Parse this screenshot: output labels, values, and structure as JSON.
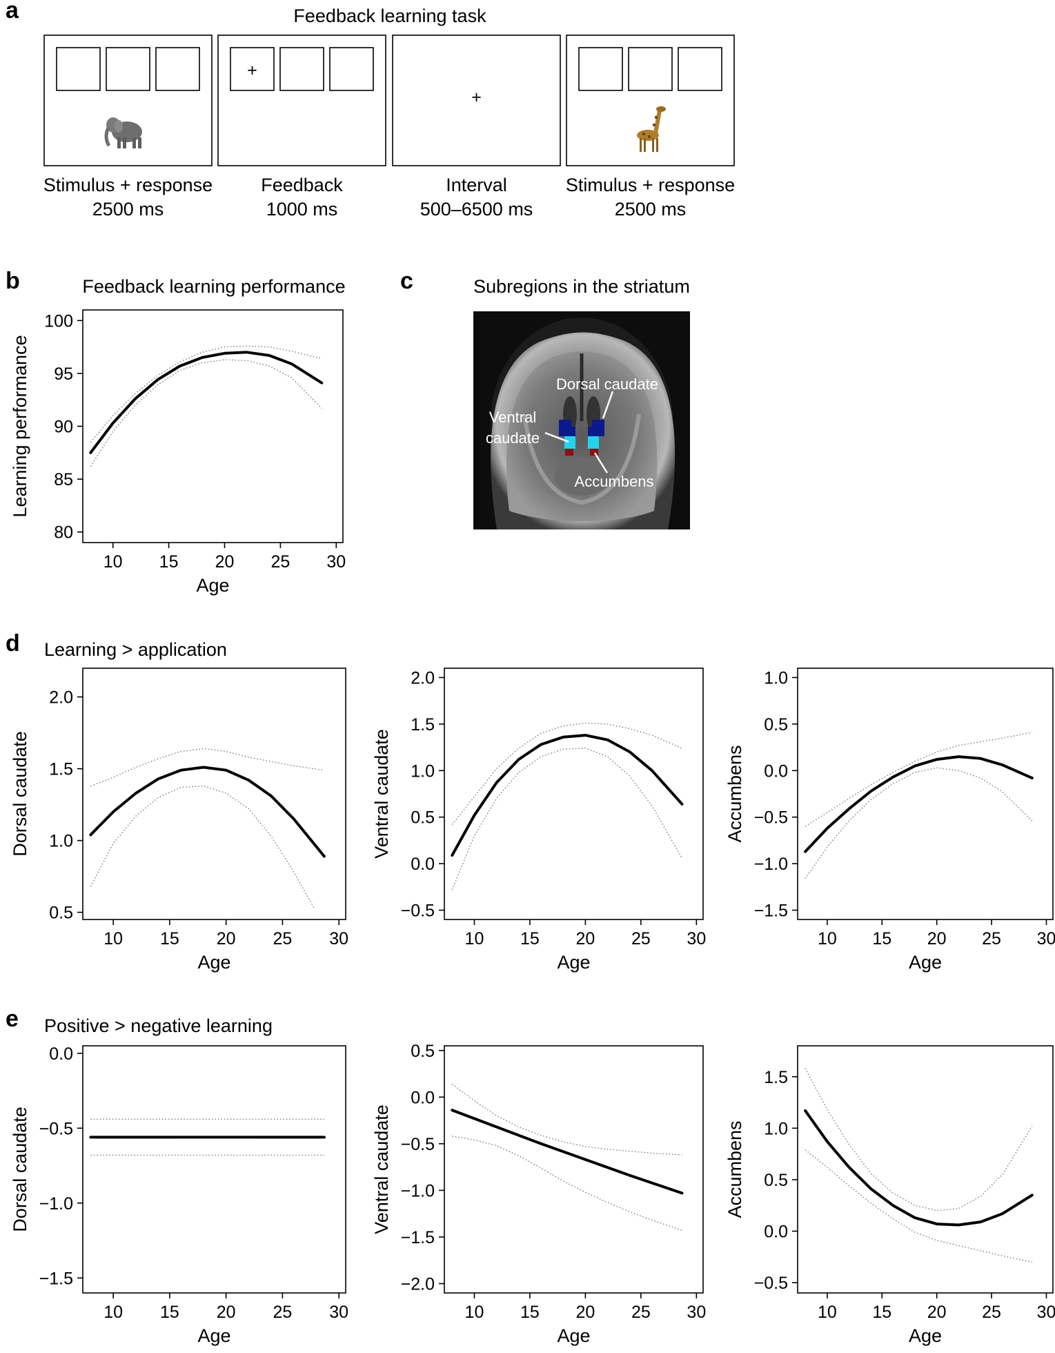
{
  "panel_a": {
    "label": "a",
    "title": "Feedback learning task",
    "screens": [
      {
        "caption1": "Stimulus + response",
        "caption2": "2500 ms",
        "fixation_box": -1,
        "center_plus": false,
        "stimulus": "elephant-icon"
      },
      {
        "caption1": "Feedback",
        "caption2": "1000 ms",
        "fixation_box": 0,
        "center_plus": false,
        "stimulus": ""
      },
      {
        "caption1": "Interval",
        "caption2": "500–6500 ms",
        "fixation_box": -1,
        "center_plus": true,
        "stimulus": ""
      },
      {
        "caption1": "Stimulus + response",
        "caption2": "2500 ms",
        "fixation_box": -1,
        "center_plus": false,
        "stimulus": "giraffe-icon"
      }
    ],
    "plus_glyph": "+"
  },
  "panel_c": {
    "label": "c",
    "title": "Subregions in the striatum",
    "labels": {
      "dorsal": "Dorsal caudate",
      "ventral1": "Ventral",
      "ventral2": "caudate",
      "accumbens": "Accumbens"
    },
    "colors": {
      "dorsal": "#0a1a8c",
      "ventral": "#22d4ee",
      "accumbens": "#8b1010"
    }
  },
  "section_d": {
    "label": "d",
    "title": "Learning > application"
  },
  "section_e": {
    "label": "e",
    "title": "Positive > negative learning"
  },
  "chart_data": [
    {
      "id": "b",
      "panel_label": "b",
      "type": "line",
      "title": "Feedback learning performance",
      "xlabel": "Age",
      "ylabel": "Learning performance",
      "xlim": [
        7.3,
        30.6
      ],
      "ylim": [
        79,
        101
      ],
      "xticks": [
        10,
        15,
        20,
        25,
        30
      ],
      "yticks": [
        80,
        85,
        90,
        95,
        100
      ],
      "series": [
        {
          "role": "fit",
          "x": [
            8,
            10,
            12,
            14,
            16,
            18,
            20,
            22,
            24,
            26,
            28.7
          ],
          "y": [
            87.5,
            90.3,
            92.6,
            94.4,
            95.7,
            96.5,
            96.9,
            97.0,
            96.7,
            95.9,
            94.1
          ]
        },
        {
          "role": "ci_upper",
          "x": [
            8,
            10,
            12,
            14,
            16,
            18,
            20,
            22,
            24,
            26,
            28.7
          ],
          "y": [
            88.5,
            91.0,
            93.1,
            94.8,
            96.1,
            97.0,
            97.5,
            97.6,
            97.5,
            97.1,
            96.4
          ]
        },
        {
          "role": "ci_lower",
          "x": [
            8,
            10,
            12,
            14,
            16,
            18,
            20,
            22,
            24,
            26,
            28.7
          ],
          "y": [
            86.2,
            89.5,
            92.0,
            93.9,
            95.3,
            96.0,
            96.3,
            96.2,
            95.7,
            94.6,
            91.7
          ]
        }
      ]
    },
    {
      "id": "d1",
      "type": "line",
      "title": "",
      "xlabel": "Age",
      "ylabel": "Dorsal caudate",
      "xlim": [
        7.3,
        30.6
      ],
      "ylim": [
        0.45,
        2.2
      ],
      "xticks": [
        10,
        15,
        20,
        25,
        30
      ],
      "yticks": [
        0.5,
        1.0,
        1.5,
        2.0
      ],
      "ytick_labels": [
        "0.5",
        "1.0",
        "1.5",
        "2.0"
      ],
      "series": [
        {
          "role": "fit",
          "x": [
            8,
            10,
            12,
            14,
            16,
            18,
            20,
            22,
            24,
            26,
            28.7
          ],
          "y": [
            1.04,
            1.2,
            1.33,
            1.43,
            1.49,
            1.51,
            1.49,
            1.42,
            1.31,
            1.15,
            0.89
          ]
        },
        {
          "role": "ci_upper",
          "x": [
            8,
            10,
            12,
            14,
            16,
            18,
            20,
            22,
            24,
            26,
            28.7
          ],
          "y": [
            1.38,
            1.44,
            1.51,
            1.57,
            1.62,
            1.64,
            1.62,
            1.58,
            1.55,
            1.52,
            1.49
          ]
        },
        {
          "role": "ci_lower",
          "x": [
            8,
            10,
            12,
            14,
            16,
            18,
            20,
            22,
            24,
            26,
            27.8
          ],
          "y": [
            0.68,
            0.98,
            1.17,
            1.3,
            1.37,
            1.38,
            1.33,
            1.22,
            1.03,
            0.78,
            0.53
          ]
        }
      ]
    },
    {
      "id": "d2",
      "type": "line",
      "title": "",
      "xlabel": "Age",
      "ylabel": "Ventral caudate",
      "xlim": [
        7.3,
        30.6
      ],
      "ylim": [
        -0.6,
        2.1
      ],
      "xticks": [
        10,
        15,
        20,
        25,
        30
      ],
      "yticks": [
        -0.5,
        0.0,
        0.5,
        1.0,
        1.5,
        2.0
      ],
      "ytick_labels": [
        "−0.5",
        "0.0",
        "0.5",
        "1.0",
        "1.5",
        "2.0"
      ],
      "series": [
        {
          "role": "fit",
          "x": [
            8,
            10,
            12,
            14,
            16,
            18,
            20,
            22,
            24,
            26,
            28.7
          ],
          "y": [
            0.09,
            0.52,
            0.87,
            1.12,
            1.28,
            1.36,
            1.38,
            1.33,
            1.2,
            1.0,
            0.64
          ]
        },
        {
          "role": "ci_upper",
          "x": [
            8,
            10,
            12,
            14,
            16,
            18,
            20,
            22,
            24,
            26,
            28.7
          ],
          "y": [
            0.42,
            0.72,
            1.02,
            1.24,
            1.4,
            1.48,
            1.51,
            1.5,
            1.45,
            1.38,
            1.24
          ]
        },
        {
          "role": "ci_lower",
          "x": [
            8,
            10,
            12,
            14,
            16,
            18,
            20,
            22,
            24,
            26,
            28.7
          ],
          "y": [
            -0.28,
            0.3,
            0.7,
            0.98,
            1.15,
            1.23,
            1.24,
            1.15,
            0.94,
            0.62,
            0.06
          ]
        }
      ]
    },
    {
      "id": "d3",
      "type": "line",
      "title": "",
      "xlabel": "Age",
      "ylabel": "Accumbens",
      "xlim": [
        7.3,
        30.6
      ],
      "ylim": [
        -1.6,
        1.1
      ],
      "xticks": [
        10,
        15,
        20,
        25,
        30
      ],
      "yticks": [
        -1.5,
        -1.0,
        -0.5,
        0.0,
        0.5,
        1.0
      ],
      "ytick_labels": [
        "−1.5",
        "−1.0",
        "−0.5",
        "0.0",
        "0.5",
        "1.0"
      ],
      "series": [
        {
          "role": "fit",
          "x": [
            8,
            10,
            12,
            14,
            16,
            18,
            20,
            22,
            24,
            26,
            28.7
          ],
          "y": [
            -0.87,
            -0.62,
            -0.41,
            -0.22,
            -0.07,
            0.05,
            0.12,
            0.15,
            0.13,
            0.06,
            -0.08
          ]
        },
        {
          "role": "ci_upper",
          "x": [
            8,
            10,
            12,
            14,
            16,
            18,
            20,
            22,
            24,
            26,
            28.7
          ],
          "y": [
            -0.6,
            -0.45,
            -0.3,
            -0.15,
            -0.02,
            0.1,
            0.2,
            0.27,
            0.31,
            0.35,
            0.41
          ]
        },
        {
          "role": "ci_lower",
          "x": [
            8,
            10,
            12,
            14,
            16,
            18,
            20,
            22,
            24,
            26,
            28.7
          ],
          "y": [
            -1.16,
            -0.82,
            -0.54,
            -0.31,
            -0.14,
            -0.02,
            0.03,
            0.0,
            -0.08,
            -0.23,
            -0.54
          ]
        }
      ]
    },
    {
      "id": "e1",
      "type": "line",
      "title": "",
      "xlabel": "Age",
      "ylabel": "Dorsal caudate",
      "xlim": [
        7.3,
        30.6
      ],
      "ylim": [
        -1.6,
        0.05
      ],
      "xticks": [
        10,
        15,
        20,
        25,
        30
      ],
      "yticks": [
        -1.5,
        -1.0,
        -0.5,
        0.0
      ],
      "ytick_labels": [
        "−1.5",
        "−1.0",
        "−0.5",
        "0.0"
      ],
      "series": [
        {
          "role": "fit",
          "x": [
            8,
            28.7
          ],
          "y": [
            -0.56,
            -0.56
          ]
        },
        {
          "role": "ci_upper",
          "x": [
            8,
            28.7
          ],
          "y": [
            -0.44,
            -0.44
          ]
        },
        {
          "role": "ci_lower",
          "x": [
            8,
            28.7
          ],
          "y": [
            -0.68,
            -0.68
          ]
        }
      ]
    },
    {
      "id": "e2",
      "type": "line",
      "title": "",
      "xlabel": "Age",
      "ylabel": "Ventral caudate",
      "xlim": [
        7.3,
        30.6
      ],
      "ylim": [
        -2.1,
        0.55
      ],
      "xticks": [
        10,
        15,
        20,
        25,
        30
      ],
      "yticks": [
        -2.0,
        -1.5,
        -1.0,
        -0.5,
        0.0,
        0.5
      ],
      "ytick_labels": [
        "−2.0",
        "−1.5",
        "−1.0",
        "−0.5",
        "0.0",
        "0.5"
      ],
      "series": [
        {
          "role": "fit",
          "x": [
            8,
            12,
            16,
            20,
            24,
            28.7
          ],
          "y": [
            -0.14,
            -0.32,
            -0.5,
            -0.67,
            -0.84,
            -1.03
          ]
        },
        {
          "role": "ci_upper",
          "x": [
            8,
            10,
            12,
            14,
            16,
            18,
            20,
            22,
            24,
            26,
            28.7
          ],
          "y": [
            0.14,
            -0.04,
            -0.2,
            -0.32,
            -0.41,
            -0.48,
            -0.53,
            -0.56,
            -0.58,
            -0.6,
            -0.62
          ]
        },
        {
          "role": "ci_lower",
          "x": [
            8,
            10,
            12,
            14,
            16,
            18,
            20,
            22,
            24,
            26,
            28.7
          ],
          "y": [
            -0.42,
            -0.46,
            -0.52,
            -0.63,
            -0.76,
            -0.9,
            -1.02,
            -1.13,
            -1.23,
            -1.32,
            -1.43
          ]
        }
      ]
    },
    {
      "id": "e3",
      "type": "line",
      "title": "",
      "xlabel": "Age",
      "ylabel": "Accumbens",
      "xlim": [
        7.3,
        30.6
      ],
      "ylim": [
        -0.6,
        1.8
      ],
      "xticks": [
        10,
        15,
        20,
        25,
        30
      ],
      "yticks": [
        -0.5,
        0.0,
        0.5,
        1.0,
        1.5
      ],
      "ytick_labels": [
        "−0.5",
        "0.0",
        "0.5",
        "1.0",
        "1.5"
      ],
      "series": [
        {
          "role": "fit",
          "x": [
            8,
            10,
            12,
            14,
            16,
            18,
            20,
            22,
            24,
            26,
            28.7
          ],
          "y": [
            1.17,
            0.87,
            0.62,
            0.41,
            0.25,
            0.13,
            0.07,
            0.06,
            0.09,
            0.17,
            0.35
          ]
        },
        {
          "role": "ci_upper",
          "x": [
            8,
            10,
            12,
            14,
            16,
            18,
            20,
            22,
            24,
            26,
            28.7
          ],
          "y": [
            1.58,
            1.18,
            0.84,
            0.56,
            0.37,
            0.25,
            0.2,
            0.22,
            0.34,
            0.55,
            1.02
          ]
        },
        {
          "role": "ci_lower",
          "x": [
            8,
            10,
            12,
            14,
            16,
            18,
            20,
            22,
            24,
            26,
            28.7
          ],
          "y": [
            0.79,
            0.62,
            0.44,
            0.27,
            0.12,
            -0.01,
            -0.09,
            -0.14,
            -0.19,
            -0.24,
            -0.3
          ]
        }
      ]
    }
  ]
}
